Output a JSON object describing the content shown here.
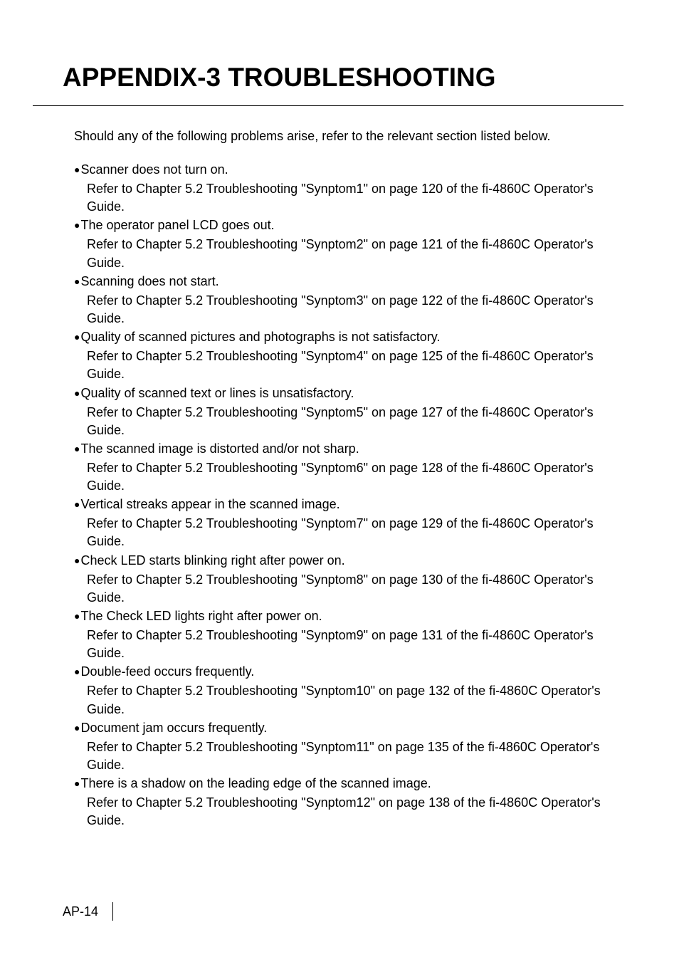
{
  "heading": "APPENDIX-3 TROUBLESHOOTING",
  "intro": "Should any of the following problems arise, refer to the relevant section listed below.",
  "items": [
    {
      "symptom": "Scanner does not turn on.",
      "reference": "Refer to Chapter 5.2 Troubleshooting \"Synptom1\" on page 120 of the fi-4860C Operator's Guide."
    },
    {
      "symptom": "The operator panel LCD goes out.",
      "reference": "Refer to Chapter 5.2 Troubleshooting \"Synptom2\" on page 121 of the fi-4860C Operator's Guide."
    },
    {
      "symptom": "Scanning does not start.",
      "reference": "Refer to Chapter 5.2 Troubleshooting \"Synptom3\" on page 122 of the fi-4860C Operator's Guide."
    },
    {
      "symptom": "Quality of scanned pictures and photographs is not satisfactory.",
      "reference": "Refer to Chapter 5.2 Troubleshooting \"Synptom4\" on page 125 of the fi-4860C Operator's Guide."
    },
    {
      "symptom": "Quality of scanned text or lines is unsatisfactory.",
      "reference": "Refer to Chapter 5.2 Troubleshooting \"Synptom5\" on page 127 of the fi-4860C Operator's Guide."
    },
    {
      "symptom": "The scanned image is distorted and/or not sharp.",
      "reference": "Refer to Chapter 5.2 Troubleshooting \"Synptom6\" on page 128 of the fi-4860C Operator's Guide."
    },
    {
      "symptom": "Vertical streaks appear in the scanned image.",
      "reference": "Refer to Chapter 5.2 Troubleshooting \"Synptom7\" on page 129 of the fi-4860C Operator's Guide."
    },
    {
      "symptom": "Check LED starts blinking right after power on.",
      "reference": "Refer to Chapter 5.2 Troubleshooting \"Synptom8\" on page 130 of the fi-4860C Operator's Guide."
    },
    {
      "symptom": "The Check LED lights right after power on.",
      "reference": "Refer to Chapter 5.2 Troubleshooting \"Synptom9\" on page 131 of the fi-4860C Operator's Guide."
    },
    {
      "symptom": "Double-feed occurs frequently.",
      "reference": "Refer to Chapter 5.2 Troubleshooting \"Synptom10\" on page 132 of the fi-4860C Operator's Guide."
    },
    {
      "symptom": "Document jam occurs frequently.",
      "reference": "Refer to Chapter 5.2 Troubleshooting \"Synptom11\" on page 135 of the fi-4860C Operator's Guide."
    },
    {
      "symptom": "There is a shadow on the leading edge of the scanned image.",
      "reference": "Refer to Chapter 5.2 Troubleshooting \"Synptom12\" on page 138 of the fi-4860C Operator's Guide."
    }
  ],
  "pageNumber": "AP-14"
}
